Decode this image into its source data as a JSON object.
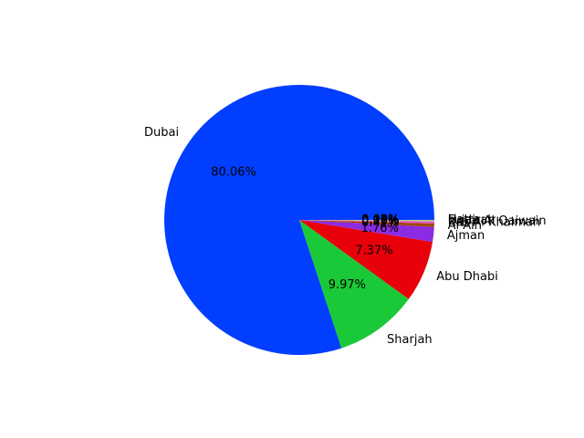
{
  "chart_data": {
    "type": "pie",
    "title": "",
    "start_angle_deg": 0,
    "direction": "counterclockwise",
    "slices": [
      {
        "label": "Dubai",
        "value": 80.06,
        "pct_label": "80.06%",
        "color": "#023eff"
      },
      {
        "label": "Sharjah",
        "value": 9.97,
        "pct_label": "9.97%",
        "color": "#1ac938"
      },
      {
        "label": "Abu Dhabi",
        "value": 7.37,
        "pct_label": "7.37%",
        "color": "#e8000b"
      },
      {
        "label": "Ajman",
        "value": 1.76,
        "pct_label": "1.76%",
        "color": "#8b2be2"
      },
      {
        "label": "Al Ain",
        "value": 0.41,
        "pct_label": "0.41%",
        "color": "#9f4800"
      },
      {
        "label": "Ras Al Khaimah",
        "value": 0.23,
        "pct_label": "0.23%",
        "color": "#f14cc1"
      },
      {
        "label": "Umm Al Qaiwain",
        "value": 0.1,
        "pct_label": "0.10%",
        "color": "#a3a3a3"
      },
      {
        "label": "Fujairah",
        "value": 0.08,
        "pct_label": "0.08%",
        "color": "#ffc400"
      },
      {
        "label": "Hatta",
        "value": 0.02,
        "pct_label": "0.02%",
        "color": "#00d7ff"
      }
    ]
  }
}
